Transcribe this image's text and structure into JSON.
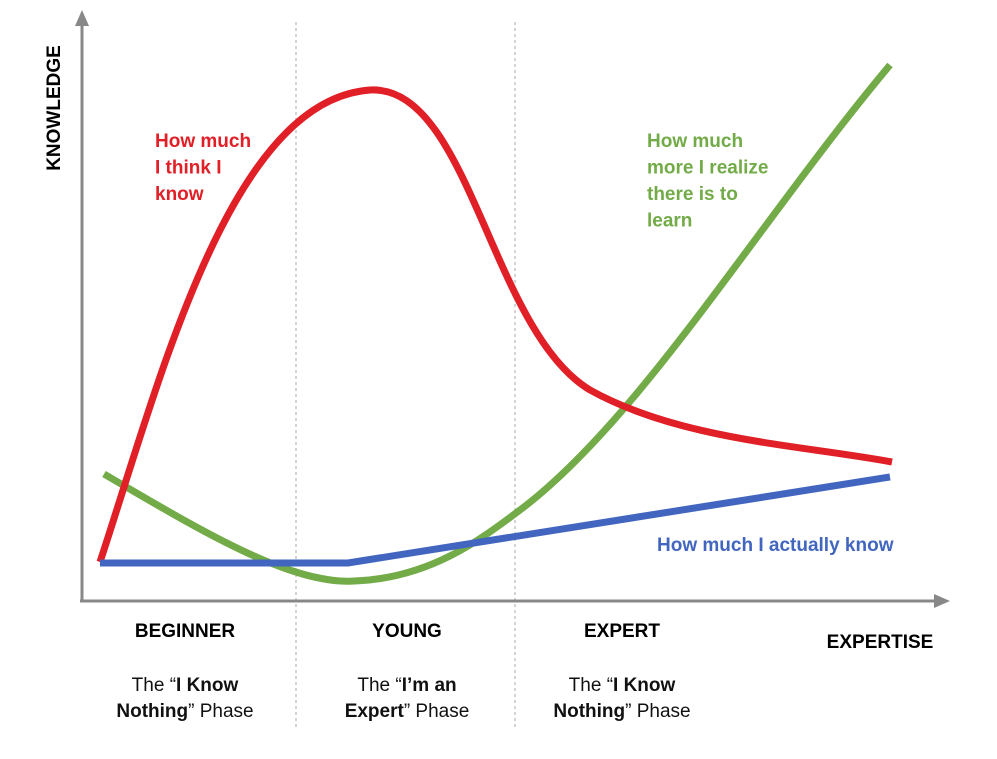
{
  "y_axis_label": "KNOWLEDGE",
  "x_axis_label": "EXPERTISE",
  "curves": [
    {
      "label_lines": [
        "How much",
        "I think I",
        "know"
      ],
      "color": "#e01f26"
    },
    {
      "label_lines": [
        "How much",
        "more I realize",
        "there is to",
        "learn"
      ],
      "color": "#72ab47"
    },
    {
      "label_lines": [
        "How much I actually know"
      ],
      "color": "#4266c0"
    }
  ],
  "phases": [
    {
      "name": "BEGINNER",
      "caption": [
        [
          {
            "text": "The “",
            "weight": "normal"
          },
          {
            "text": "I Know",
            "weight": "bold"
          }
        ],
        [
          {
            "text": "Nothing",
            "weight": "bold"
          },
          {
            "text": "” Phase",
            "weight": "normal"
          }
        ]
      ]
    },
    {
      "name": "YOUNG",
      "caption": [
        [
          {
            "text": "The “",
            "weight": "normal"
          },
          {
            "text": "I’m an",
            "weight": "bold"
          }
        ],
        [
          {
            "text": "Expert",
            "weight": "bold"
          },
          {
            "text": "” Phase",
            "weight": "normal"
          }
        ]
      ]
    },
    {
      "name": "EXPERT",
      "caption": [
        [
          {
            "text": "The “",
            "weight": "normal"
          },
          {
            "text": "I Know",
            "weight": "bold"
          }
        ],
        [
          {
            "text": "Nothing",
            "weight": "bold"
          },
          {
            "text": "” Phase",
            "weight": "normal"
          }
        ]
      ]
    }
  ]
}
